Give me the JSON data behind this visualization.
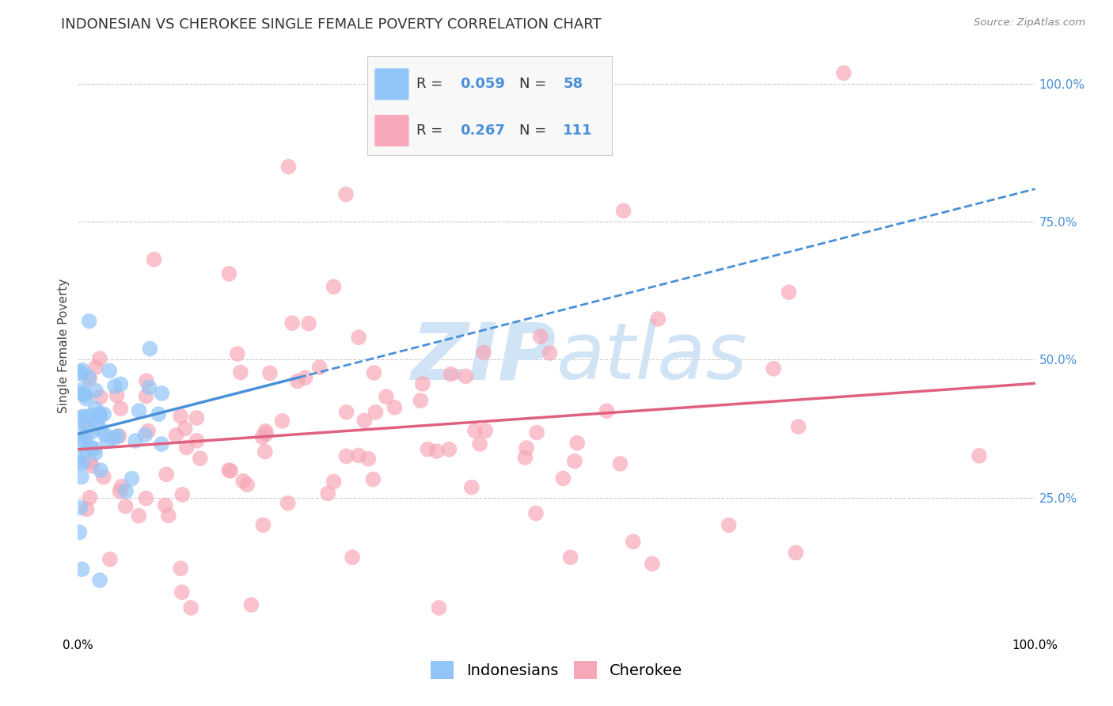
{
  "title": "INDONESIAN VS CHEROKEE SINGLE FEMALE POVERTY CORRELATION CHART",
  "source": "Source: ZipAtlas.com",
  "ylabel": "Single Female Poverty",
  "indonesian_R": 0.059,
  "indonesian_N": 58,
  "cherokee_R": 0.267,
  "cherokee_N": 111,
  "indonesian_color": "#92C5F7",
  "cherokee_color": "#F7A8B8",
  "indonesian_line_color": "#4A90D9",
  "cherokee_line_color": "#E06080",
  "legend_label_1": "Indonesians",
  "legend_label_2": "Cherokee",
  "background_color": "#FFFFFF",
  "watermark_color": "#D0E4F5",
  "title_fontsize": 13,
  "axis_label_fontsize": 11,
  "tick_fontsize": 11,
  "legend_fontsize": 14,
  "right_tick_color": "#4A90D9",
  "grid_color": "#CCCCCC"
}
